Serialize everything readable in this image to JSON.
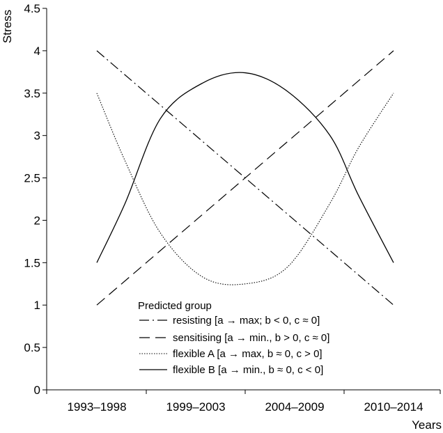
{
  "chart_data": {
    "type": "line",
    "title": "",
    "xlabel": "Years",
    "ylabel": "Stress",
    "categories": [
      "1993–1998",
      "1999–2003",
      "2004–2009",
      "2010–2014"
    ],
    "ylim": [
      0,
      4.5
    ],
    "yticks": [
      "0",
      "0.5",
      "1",
      "1.5",
      "2",
      "2.5",
      "3",
      "3.5",
      "4",
      "4.5"
    ],
    "grid": false,
    "legend": {
      "title": "Predicted group",
      "placement": "bottom-center"
    },
    "series": [
      {
        "name": "resisting [a → max; b < 0, c ≈ 0]",
        "style": "dash-dot",
        "points": [
          [
            1993.5,
            4.0
          ],
          [
            2014.5,
            1.0
          ]
        ]
      },
      {
        "name": "sensitising [a → min., b > 0, c ≈ 0]",
        "style": "dashed",
        "points": [
          [
            1993.5,
            1.0
          ],
          [
            2014.5,
            4.0
          ]
        ]
      },
      {
        "name": "flexible A [a → max, b ≈ 0, c > 0]",
        "style": "dotted",
        "points": [
          [
            1993.5,
            3.5
          ],
          [
            1995.5,
            2.7
          ],
          [
            1998,
            1.85
          ],
          [
            2001,
            1.33
          ],
          [
            2004,
            1.25
          ],
          [
            2007,
            1.45
          ],
          [
            2010,
            2.2
          ],
          [
            2012,
            2.85
          ],
          [
            2014.5,
            3.5
          ]
        ]
      },
      {
        "name": "flexible B [a → min., b ≈ 0, c < 0]",
        "style": "solid",
        "points": [
          [
            1993.5,
            1.5
          ],
          [
            1995.5,
            2.2
          ],
          [
            1998,
            3.2
          ],
          [
            2001,
            3.62
          ],
          [
            2004,
            3.74
          ],
          [
            2007,
            3.52
          ],
          [
            2010,
            3.0
          ],
          [
            2012,
            2.3
          ],
          [
            2014.5,
            1.5
          ]
        ]
      }
    ]
  }
}
